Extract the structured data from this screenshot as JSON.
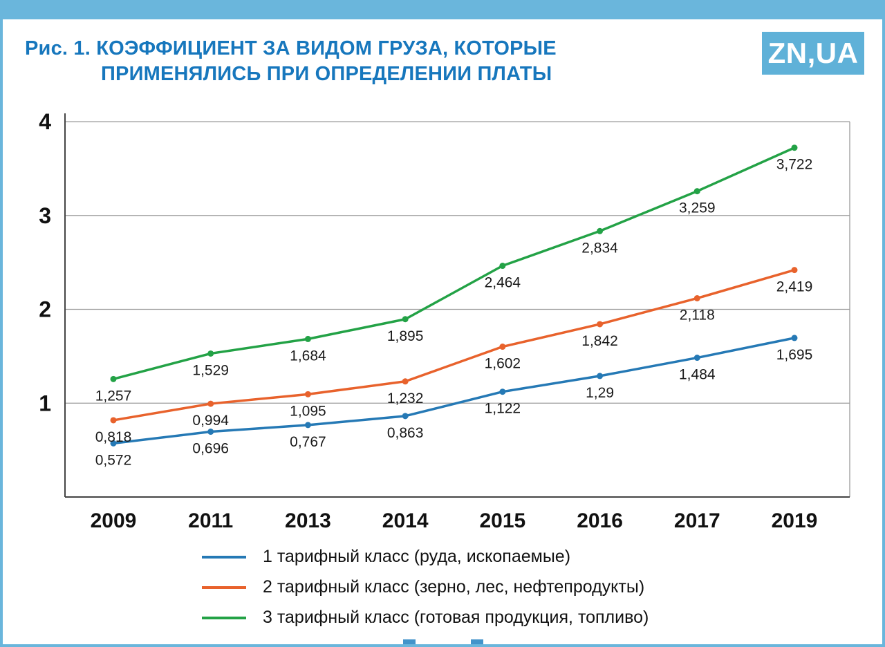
{
  "header": {
    "title_prefix": "Рис. 1.",
    "title_line1": "КОЭФФИЦИЕНТ ЗА ВИДОМ ГРУЗА, КОТОРЫЕ",
    "title_line2": "ПРИМЕНЯЛИСЬ ПРИ ОПРЕДЕЛЕНИИ ПЛАТЫ",
    "logo_text": "ZN,UA"
  },
  "colors": {
    "accent_bar": "#6ab6dc",
    "title_text": "#1777bd",
    "logo_background": "#5fb1d8",
    "axis": "#444444",
    "gridline": "#9c9c9c",
    "tick_text": "#111111",
    "data_label_text": "#1a1a1a"
  },
  "chart_data": {
    "type": "line",
    "title": "Рис. 1. КОЭФФИЦИЕНТ ЗА ВИДОМ ГРУЗА, КОТОРЫЕ ПРИМЕНЯЛИСЬ ПРИ ОПРЕДЕЛЕНИИ ПЛАТЫ",
    "categories": [
      "2009",
      "2011",
      "2013",
      "2014",
      "2015",
      "2016",
      "2017",
      "2019"
    ],
    "series": [
      {
        "name": "1 тарифный класс (руда, ископаемые)",
        "color": "#2579b5",
        "values": [
          0.572,
          0.696,
          0.767,
          0.863,
          1.122,
          1.29,
          1.484,
          1.695
        ]
      },
      {
        "name": "2 тарифный класс (зерно, лес, нефтепродукты)",
        "color": "#e8622c",
        "values": [
          0.818,
          0.994,
          1.095,
          1.232,
          1.602,
          1.842,
          2.118,
          2.419
        ]
      },
      {
        "name": "3 тарифный класс (готовая продукция, топливо)",
        "color": "#23a246",
        "values": [
          1.257,
          1.529,
          1.684,
          1.895,
          2.464,
          2.834,
          3.259,
          3.722
        ]
      }
    ],
    "y_ticks": [
      1,
      2,
      3,
      4
    ],
    "ylim": [
      0,
      4
    ],
    "xlabel": "",
    "ylabel": "",
    "grid": true,
    "decimal_separator": ",",
    "legend_position": "bottom",
    "data_labels": true
  }
}
